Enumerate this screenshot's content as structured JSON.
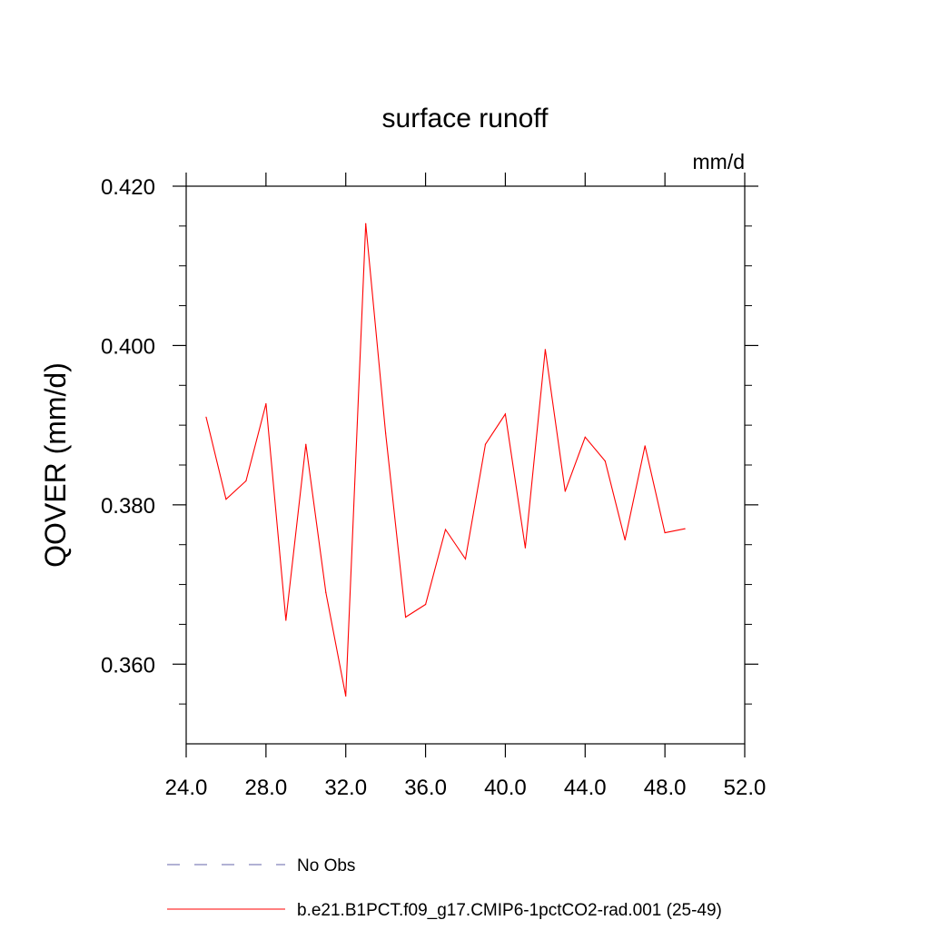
{
  "chart_data": {
    "type": "line",
    "title": "surface runoff",
    "units": "mm/d",
    "ylabel": "QOVER  (mm/d)",
    "xlabel": "",
    "xlim": [
      24.0,
      52.0
    ],
    "ylim": [
      0.35,
      0.42
    ],
    "x_major_ticks": [
      24,
      28,
      32,
      36,
      40,
      44,
      48,
      52
    ],
    "x_tick_labels": [
      "24.0",
      "28.0",
      "32.0",
      "36.0",
      "40.0",
      "44.0",
      "48.0",
      "52.0"
    ],
    "x_minor_ticks": [],
    "y_major_ticks": [
      0.36,
      0.38,
      0.4,
      0.42
    ],
    "y_tick_labels": [
      "0.360",
      "0.380",
      "0.400",
      "0.420"
    ],
    "y_minor_ticks": [
      0.355,
      0.365,
      0.37,
      0.375,
      0.385,
      0.39,
      0.395,
      0.405,
      0.41,
      0.415
    ],
    "grid": false,
    "legend_placement": "bottom",
    "series": [
      {
        "name": "b.e21.B1PCT.f09_g17.CMIP6-1pctCO2-rad.001 (25-49)",
        "color": "#ff0000",
        "dash": "solid",
        "x": [
          25,
          26,
          27,
          28,
          29,
          30,
          31,
          32,
          33,
          34,
          35,
          36,
          37,
          38,
          39,
          40,
          41,
          42,
          43,
          44,
          45,
          46,
          47,
          48,
          49
        ],
        "y": [
          0.391,
          0.3807,
          0.383,
          0.3927,
          0.3655,
          0.3876,
          0.369,
          0.356,
          0.4153,
          0.389,
          0.3659,
          0.3675,
          0.3769,
          0.3732,
          0.3876,
          0.3914,
          0.3746,
          0.3995,
          0.3817,
          0.3885,
          0.3855,
          0.3756,
          0.3874,
          0.3765,
          0.377
        ]
      }
    ],
    "legend": [
      {
        "label": "No Obs",
        "color": "#6666aa",
        "dash": "dashed"
      },
      {
        "label": "b.e21.B1PCT.f09_g17.CMIP6-1pctCO2-rad.001 (25-49)",
        "color": "#ff0000",
        "dash": "solid"
      }
    ]
  }
}
